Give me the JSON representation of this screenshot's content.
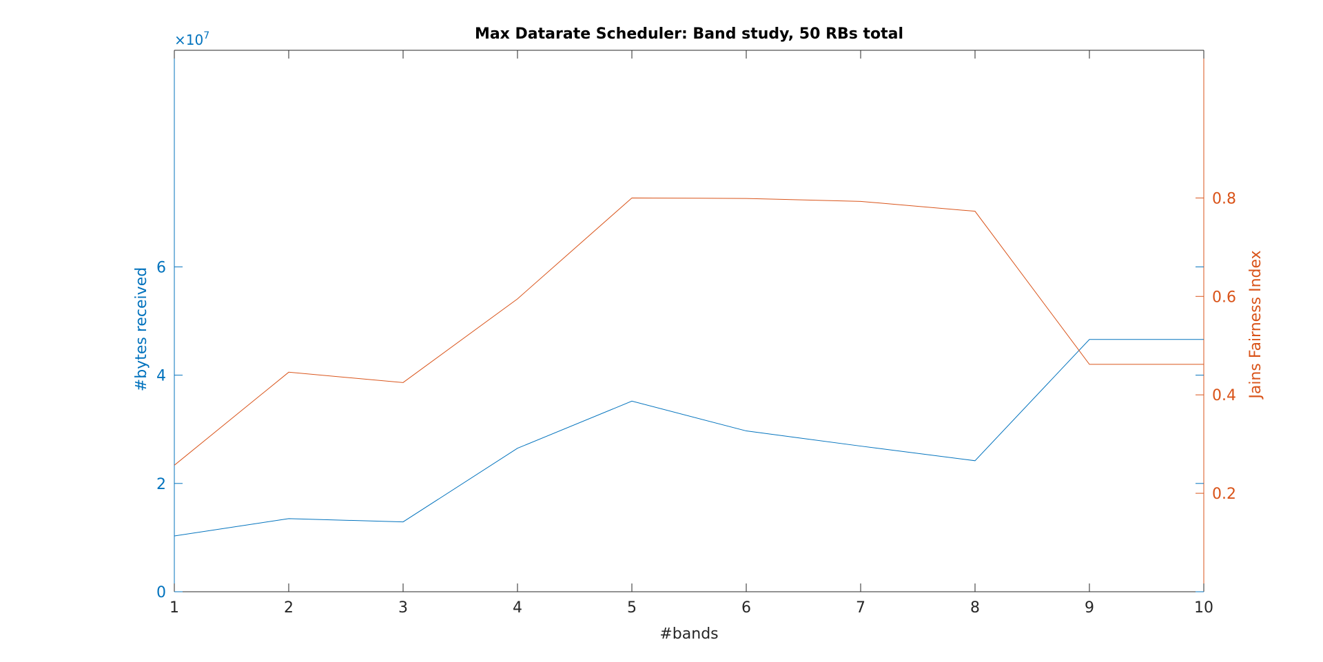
{
  "colors": {
    "left_axis": "#0072BD",
    "right_axis": "#D95319",
    "axis_dark": "#262626",
    "background": "#ffffff"
  },
  "chart_data": {
    "type": "line",
    "title": "Max Datarate Scheduler: Band study, 50 RBs total",
    "xlabel": "#bands",
    "x": [
      1,
      2,
      3,
      4,
      5,
      6,
      7,
      8,
      9,
      10
    ],
    "xlim": [
      1,
      10
    ],
    "xticks": [
      "1",
      "2",
      "3",
      "4",
      "5",
      "6",
      "7",
      "8",
      "9",
      "10"
    ],
    "left_axis": {
      "label": "#bytes received",
      "exponent_label": "×10",
      "exponent_power": "7",
      "ylim": [
        0,
        10
      ],
      "ticks": [
        0,
        2,
        4,
        6
      ],
      "tick_labels": [
        "0",
        "2",
        "4",
        "6"
      ]
    },
    "right_axis": {
      "label": "Jains Fairness Index",
      "ylim": [
        0,
        1.1
      ],
      "ticks": [
        0.2,
        0.4,
        0.6,
        0.8
      ],
      "tick_labels": [
        "0.2",
        "0.4",
        "0.6",
        "0.8"
      ]
    },
    "series": [
      {
        "axis": "left",
        "values": [
          1.03,
          1.35,
          1.29,
          2.65,
          3.52,
          2.97,
          2.69,
          2.42,
          4.66,
          4.66
        ]
      },
      {
        "axis": "right",
        "values": [
          0.257,
          0.446,
          0.425,
          0.595,
          0.8,
          0.799,
          0.793,
          0.773,
          0.462,
          0.462
        ]
      }
    ],
    "grid": false
  }
}
